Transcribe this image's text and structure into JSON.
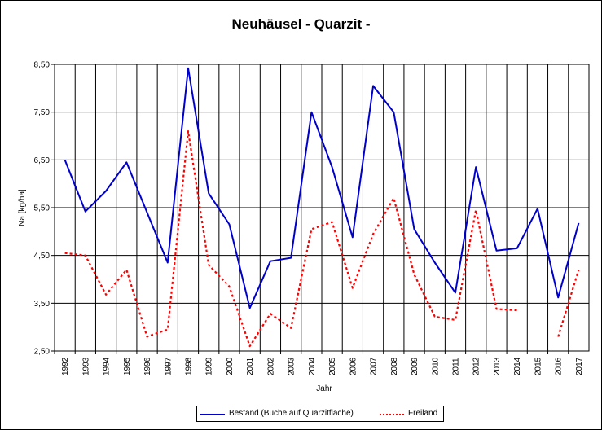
{
  "chart_data": {
    "type": "line",
    "title": "Neuhäusel - Quarzit -",
    "xlabel": "Jahr",
    "ylabel": "Na [kg/ha]",
    "ylim": [
      2.5,
      8.5
    ],
    "y_ticks": [
      "2,50",
      "3,50",
      "4,50",
      "5,50",
      "6,50",
      "7,50",
      "8,50"
    ],
    "categories": [
      "1992",
      "1993",
      "1994",
      "1995",
      "1996",
      "1997",
      "1998",
      "1999",
      "2000",
      "2001",
      "2002",
      "2003",
      "2004",
      "2005",
      "2006",
      "2007",
      "2008",
      "2009",
      "2010",
      "2011",
      "2012",
      "2013",
      "2014",
      "2015",
      "2016",
      "2017"
    ],
    "grid": true,
    "legend_position": "bottom",
    "series": [
      {
        "name": "Bestand (Buche auf Quarzitfläche)",
        "color": "#0000cc",
        "style": "solid",
        "values": [
          6.5,
          5.42,
          5.85,
          6.45,
          5.4,
          4.35,
          8.42,
          5.8,
          5.15,
          3.4,
          4.38,
          4.45,
          7.5,
          6.35,
          4.88,
          8.05,
          7.5,
          5.05,
          4.35,
          3.72,
          6.35,
          4.6,
          4.65,
          5.48,
          3.62,
          5.18
        ]
      },
      {
        "name": "Freiland",
        "color": "#ff0000",
        "style": "dotted",
        "values": [
          4.55,
          4.5,
          3.68,
          4.2,
          2.8,
          2.95,
          7.1,
          4.3,
          3.85,
          2.6,
          3.28,
          2.98,
          5.05,
          5.2,
          3.82,
          4.95,
          5.7,
          4.1,
          3.22,
          3.15,
          5.45,
          3.38,
          3.35,
          null,
          2.8,
          4.2
        ]
      }
    ]
  }
}
